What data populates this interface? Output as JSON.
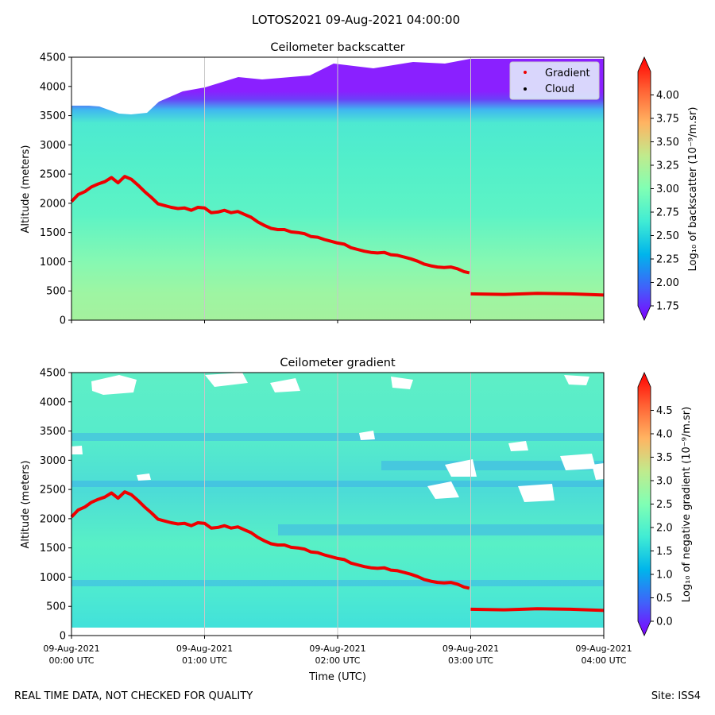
{
  "figure": {
    "suptitle": "LOTOS2021 09-Aug-2021 04:00:00",
    "footer_left": "REAL TIME DATA, NOT CHECKED FOR QUALITY",
    "footer_right": "Site: ISS4"
  },
  "legend": {
    "gradient_label": "Gradient",
    "cloud_label": "Cloud"
  },
  "xaxis": {
    "label": "Time (UTC)",
    "tick_date": "09-Aug-2021",
    "tick_times": [
      "00:00 UTC",
      "01:00 UTC",
      "02:00 UTC",
      "03:00 UTC",
      "04:00 UTC"
    ]
  },
  "colors": {
    "pbl_line": "#ee0000",
    "cloud_marker": "#000000",
    "grid": "#c8c8c8"
  },
  "chart_data": [
    {
      "type": "heatmap",
      "title": "Ceilometer backscatter",
      "xlabel": "",
      "ylabel": "Altitude (meters)",
      "xlim_hours": [
        0,
        4
      ],
      "ylim": [
        0,
        4500
      ],
      "yticks": [
        0,
        500,
        1000,
        1500,
        2000,
        2500,
        3000,
        3500,
        4000,
        4500
      ],
      "colorbar": {
        "label": "Log₁₀ of backscatter (10⁻⁹/m.sr)",
        "range": [
          1.75,
          4.25
        ],
        "ticks": [
          "1.75",
          "2.00",
          "2.25",
          "2.50",
          "2.75",
          "3.00",
          "3.25",
          "3.50",
          "3.75",
          "4.00"
        ]
      },
      "gradient_series": {
        "name": "Gradient",
        "hours": [
          0.0,
          0.05,
          0.1,
          0.15,
          0.2,
          0.25,
          0.3,
          0.35,
          0.4,
          0.45,
          0.5,
          0.55,
          0.6,
          0.65,
          0.7,
          0.75,
          0.8,
          0.85,
          0.9,
          0.95,
          1.0,
          1.05,
          1.1,
          1.15,
          1.2,
          1.25,
          1.3,
          1.35,
          1.4,
          1.45,
          1.5,
          1.55,
          1.6,
          1.65,
          1.7,
          1.75,
          1.8,
          1.85,
          1.9,
          1.95,
          2.0,
          2.05,
          2.1,
          2.15,
          2.2,
          2.25,
          2.3,
          2.35,
          2.4,
          2.45,
          2.5,
          2.55,
          2.6,
          2.65,
          2.7,
          2.75,
          2.8,
          2.85,
          2.9,
          2.95,
          2.99
        ],
        "altitude": [
          2030,
          2150,
          2200,
          2280,
          2330,
          2370,
          2440,
          2350,
          2460,
          2410,
          2310,
          2200,
          2100,
          1990,
          1960,
          1930,
          1910,
          1920,
          1880,
          1930,
          1920,
          1840,
          1850,
          1880,
          1840,
          1860,
          1810,
          1760,
          1680,
          1620,
          1570,
          1550,
          1550,
          1510,
          1500,
          1480,
          1430,
          1420,
          1380,
          1350,
          1320,
          1300,
          1240,
          1210,
          1180,
          1160,
          1150,
          1160,
          1120,
          1110,
          1080,
          1050,
          1010,
          960,
          930,
          910,
          900,
          910,
          880,
          830,
          810
        ]
      },
      "gradient_series_2": {
        "name": "Gradient",
        "hours": [
          3.0,
          3.25,
          3.5,
          3.75,
          4.0
        ],
        "altitude": [
          450,
          440,
          460,
          450,
          430
        ]
      },
      "cloud_series": {
        "name": "Cloud",
        "hours": [],
        "altitude": []
      }
    },
    {
      "type": "heatmap",
      "title": "Ceilometer gradient",
      "xlabel": "Time (UTC)",
      "ylabel": "Altitude (meters)",
      "xlim_hours": [
        0,
        4
      ],
      "ylim": [
        0,
        4500
      ],
      "yticks": [
        0,
        500,
        1000,
        1500,
        2000,
        2500,
        3000,
        3500,
        4000,
        4500
      ],
      "colorbar": {
        "label": "Log₁₀ of negative gradient (10⁻⁹/m.sr)",
        "range": [
          0.0,
          5.0
        ],
        "ticks": [
          "0.0",
          "0.5",
          "1.0",
          "1.5",
          "2.0",
          "2.5",
          "3.0",
          "3.5",
          "4.0",
          "4.5"
        ]
      },
      "gradient_series": {
        "name": "Gradient",
        "hours": [
          0.0,
          0.05,
          0.1,
          0.15,
          0.2,
          0.25,
          0.3,
          0.35,
          0.4,
          0.45,
          0.5,
          0.55,
          0.6,
          0.65,
          0.7,
          0.75,
          0.8,
          0.85,
          0.9,
          0.95,
          1.0,
          1.05,
          1.1,
          1.15,
          1.2,
          1.25,
          1.3,
          1.35,
          1.4,
          1.45,
          1.5,
          1.55,
          1.6,
          1.65,
          1.7,
          1.75,
          1.8,
          1.85,
          1.9,
          1.95,
          2.0,
          2.05,
          2.1,
          2.15,
          2.2,
          2.25,
          2.3,
          2.35,
          2.4,
          2.45,
          2.5,
          2.55,
          2.6,
          2.65,
          2.7,
          2.75,
          2.8,
          2.85,
          2.9,
          2.95,
          2.99
        ],
        "altitude": [
          2030,
          2150,
          2200,
          2280,
          2330,
          2370,
          2440,
          2350,
          2460,
          2410,
          2310,
          2200,
          2100,
          1990,
          1960,
          1930,
          1910,
          1920,
          1880,
          1930,
          1920,
          1840,
          1850,
          1880,
          1840,
          1860,
          1810,
          1760,
          1680,
          1620,
          1570,
          1550,
          1550,
          1510,
          1500,
          1480,
          1430,
          1420,
          1380,
          1350,
          1320,
          1300,
          1240,
          1210,
          1180,
          1160,
          1150,
          1160,
          1120,
          1110,
          1080,
          1050,
          1010,
          960,
          930,
          910,
          900,
          910,
          880,
          830,
          810
        ]
      },
      "gradient_series_2": {
        "name": "Gradient",
        "hours": [
          3.0,
          3.25,
          3.5,
          3.75,
          4.0
        ],
        "altitude": [
          450,
          440,
          460,
          450,
          430
        ]
      },
      "cloud_series": {
        "name": "Cloud",
        "hours": [],
        "altitude": []
      }
    }
  ]
}
